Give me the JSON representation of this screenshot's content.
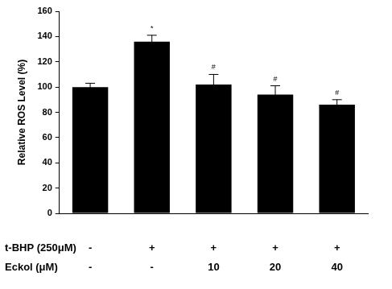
{
  "chart_data": {
    "type": "bar",
    "y_label": "Relative ROS Level (%)",
    "categories": [
      null,
      null,
      null,
      null,
      null
    ],
    "values": [
      100,
      136,
      102,
      94,
      86
    ],
    "errors": [
      3,
      5,
      8,
      7,
      4
    ],
    "annotations": [
      null,
      "*",
      "#",
      "#",
      "#"
    ],
    "conditions": [
      {
        "label": "t-BHP (250μM)",
        "values": [
          "-",
          "+",
          "+",
          "+",
          "+"
        ]
      },
      {
        "label": "Eckol (μM)",
        "values": [
          "-",
          "-",
          "10",
          "20",
          "40"
        ]
      }
    ],
    "color": "#000000",
    "ylim": [
      0,
      160
    ],
    "yticks": [
      0,
      20,
      40,
      60,
      80,
      100,
      120,
      140,
      160
    ],
    "grid": false
  }
}
